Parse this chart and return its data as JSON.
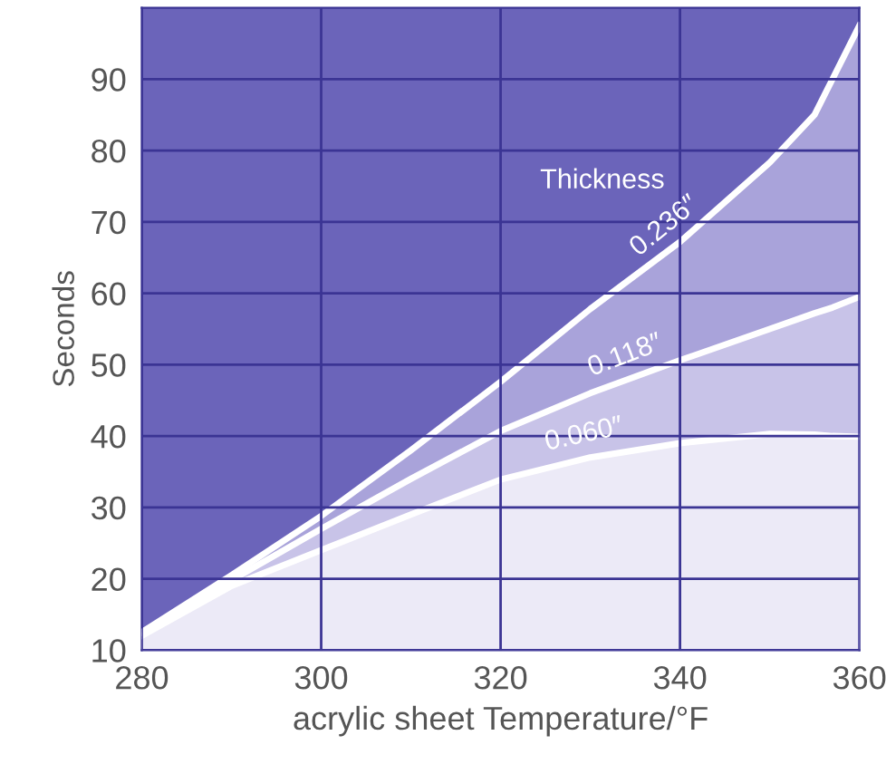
{
  "chart_data": {
    "type": "area",
    "xlabel": "acrylic sheet Temperature/°F",
    "ylabel": "Seconds",
    "x": [
      280,
      290,
      300,
      310,
      320,
      330,
      340,
      350,
      355,
      357,
      360
    ],
    "series": [
      {
        "name": "0.060″",
        "color": "#eceaf7",
        "values": [
          12,
          19,
          24,
          29,
          33.9,
          37,
          39,
          40.3,
          40.2,
          40,
          39.9
        ]
      },
      {
        "name": "0.118″",
        "color": "#c8c3e8",
        "values": [
          12.5,
          19.8,
          27,
          34,
          40.7,
          46,
          50.6,
          55,
          57.2,
          58,
          59.5
        ]
      },
      {
        "name": "0.236″",
        "color": "#a9a3da",
        "values": [
          12.5,
          20.5,
          28.8,
          38,
          47.6,
          57.8,
          67.2,
          78.3,
          85,
          90,
          97.5
        ]
      }
    ],
    "annotations": [
      "Thickness"
    ],
    "xlim": [
      280,
      360
    ],
    "ylim": [
      10,
      100
    ],
    "xticks": [
      280,
      300,
      320,
      340,
      360
    ],
    "yticks": [
      10,
      20,
      30,
      40,
      50,
      60,
      70,
      80,
      90
    ],
    "grid": true,
    "legend": false
  }
}
